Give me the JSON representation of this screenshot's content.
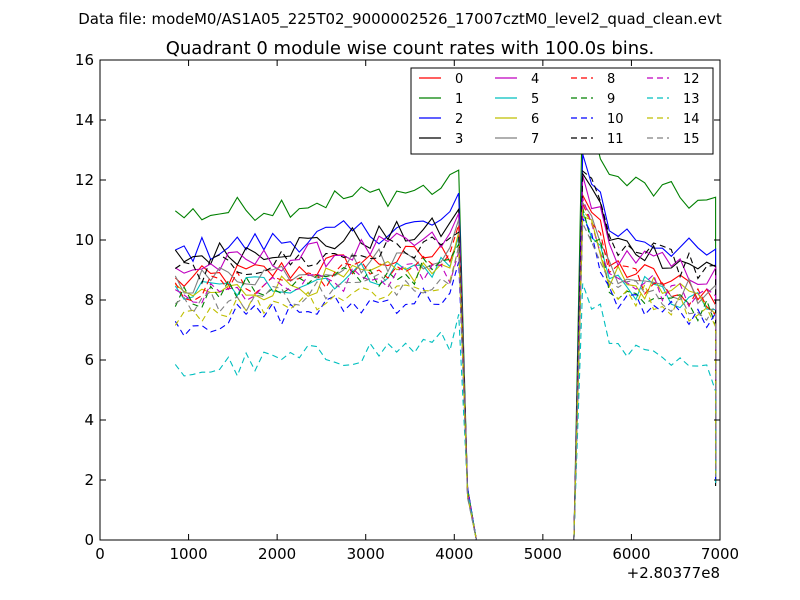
{
  "suptitle": "Data file: modeM0/AS1A05_225T02_9000002526_17007cztM0_level2_quad_clean.evt",
  "chart_data": {
    "type": "line",
    "title": "Quadrant 0 module wise count rates with 100.0s bins.",
    "xlabel": "",
    "ylabel": "",
    "x_offset_label": "+2.80377e8",
    "xlim": [
      0,
      7000
    ],
    "ylim": [
      0,
      16
    ],
    "x_ticks": [
      0,
      1000,
      2000,
      3000,
      4000,
      5000,
      6000,
      7000
    ],
    "x_tick_labels": [
      "0",
      "1000",
      "2000",
      "3000",
      "4000",
      "5000",
      "6000",
      "7000"
    ],
    "y_ticks": [
      0,
      2,
      4,
      6,
      8,
      10,
      12,
      14,
      16
    ],
    "y_tick_labels": [
      "0",
      "2",
      "4",
      "6",
      "8",
      "10",
      "12",
      "14",
      "16"
    ],
    "grid": false,
    "legend_position": "top-right",
    "segment1": {
      "x_start": 850,
      "x_step": 100,
      "count": 33
    },
    "segment2": {
      "x_start": 5450,
      "x_step": 100,
      "count": 16
    },
    "gap": {
      "x": [
        4150,
        4250,
        5350
      ],
      "y": [
        1.6,
        0.0,
        0.0
      ]
    },
    "series": [
      {
        "name": "0",
        "color": "#ff0000",
        "dashed": false,
        "level1": 8.6,
        "level2": 9.4,
        "end": 2.5
      },
      {
        "name": "1",
        "color": "#008000",
        "dashed": false,
        "level1": 10.8,
        "level2": 12.3,
        "end": 1.9
      },
      {
        "name": "2",
        "color": "#0000ff",
        "dashed": false,
        "level1": 9.6,
        "level2": 10.6,
        "end": 2.3
      },
      {
        "name": "3",
        "color": "#000000",
        "dashed": false,
        "level1": 9.4,
        "level2": 10.2,
        "end": 1.8
      },
      {
        "name": "4",
        "color": "#bf00bf",
        "dashed": false,
        "level1": 9.0,
        "level2": 9.9,
        "end": 2.4
      },
      {
        "name": "5",
        "color": "#00bfbf",
        "dashed": false,
        "level1": 8.2,
        "level2": 8.9,
        "end": 2.2
      },
      {
        "name": "6",
        "color": "#bfbf00",
        "dashed": false,
        "level1": 8.1,
        "level2": 9.0,
        "end": 2.1
      },
      {
        "name": "7",
        "color": "#808080",
        "dashed": false,
        "level1": 8.6,
        "level2": 9.3,
        "end": 2.3
      },
      {
        "name": "8",
        "color": "#ff0000",
        "dashed": true,
        "level1": 8.3,
        "level2": 9.1,
        "end": 2.4
      },
      {
        "name": "9",
        "color": "#008000",
        "dashed": true,
        "level1": 8.1,
        "level2": 8.8,
        "end": 2.2
      },
      {
        "name": "10",
        "color": "#0000ff",
        "dashed": true,
        "level1": 7.2,
        "level2": 8.4,
        "end": 2.0
      },
      {
        "name": "11",
        "color": "#000000",
        "dashed": true,
        "level1": 8.9,
        "level2": 10.1,
        "end": 2.6
      },
      {
        "name": "12",
        "color": "#bf00bf",
        "dashed": true,
        "level1": 8.0,
        "level2": 9.1,
        "end": 2.3
      },
      {
        "name": "13",
        "color": "#00bfbf",
        "dashed": true,
        "level1": 5.6,
        "level2": 6.6,
        "end": 1.9
      },
      {
        "name": "14",
        "color": "#bfbf00",
        "dashed": true,
        "level1": 7.6,
        "level2": 8.7,
        "end": 2.2
      },
      {
        "name": "15",
        "color": "#808080",
        "dashed": true,
        "level1": 7.8,
        "level2": 8.8,
        "end": 2.1
      }
    ]
  }
}
